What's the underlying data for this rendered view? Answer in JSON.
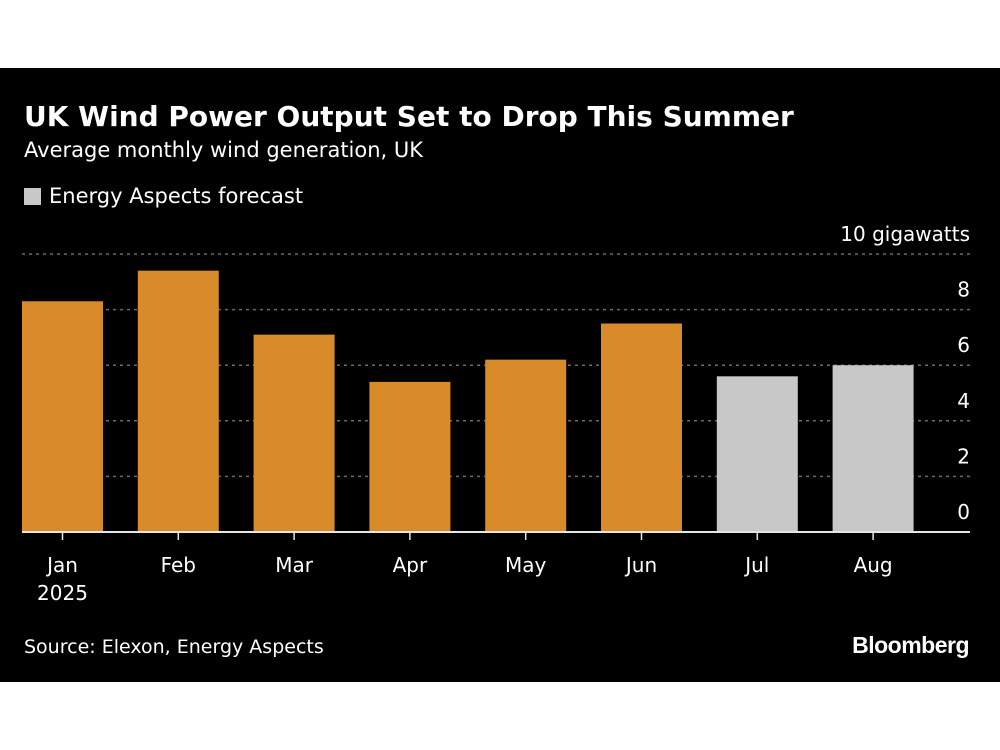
{
  "header": {
    "title": "UK Wind Power Output Set to Drop This Summer",
    "subtitle": "Average monthly wind generation, UK"
  },
  "legend": {
    "label": "Energy Aspects forecast",
    "color": "#c8c8c8"
  },
  "footer": {
    "source": "Source: Elexon, Energy Aspects",
    "logo": "Bloomberg"
  },
  "colors": {
    "actual": "#d98a29",
    "forecast": "#c8c8c8",
    "background": "#000000",
    "grid": "#6a6a6a"
  },
  "chart_data": {
    "type": "bar",
    "title": "UK Wind Power Output Set to Drop This Summer",
    "subtitle": "Average monthly wind generation, UK",
    "categories": [
      "Jan",
      "Feb",
      "Mar",
      "Apr",
      "May",
      "Jun",
      "Jul",
      "Aug"
    ],
    "year_label": "2025",
    "values": [
      8.3,
      9.4,
      7.1,
      5.4,
      6.2,
      7.5,
      5.6,
      6.0
    ],
    "forecast": [
      false,
      false,
      false,
      false,
      false,
      false,
      true,
      true
    ],
    "yticks": [
      0,
      2,
      4,
      6,
      8,
      10
    ],
    "ytick_labels": [
      "0",
      "2",
      "4",
      "6",
      "8",
      "10 gigawatts"
    ],
    "ylim": [
      0,
      10
    ],
    "grid": true,
    "axis_side": "right",
    "legend_position": "top-left"
  }
}
